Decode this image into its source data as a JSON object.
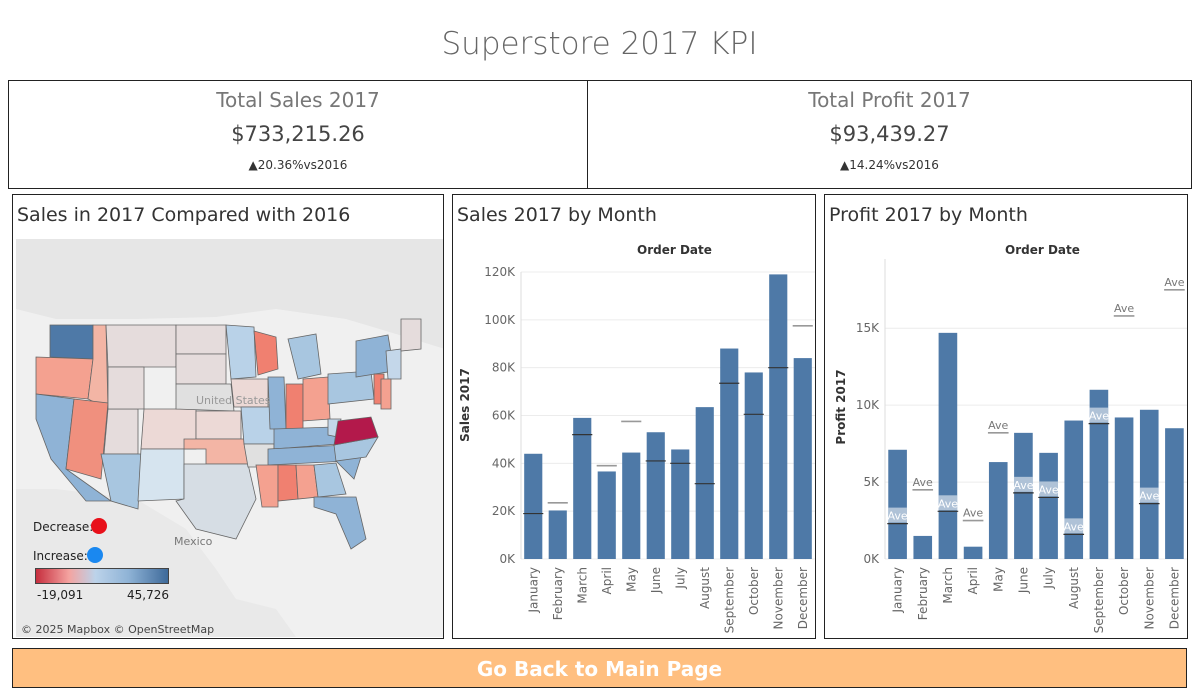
{
  "page": {
    "title": "Superstore 2017 KPI"
  },
  "kpis": {
    "sales": {
      "title": "Total Sales 2017",
      "value": "$733,215.26",
      "delta": "▲20.36%vs2016"
    },
    "profit": {
      "title": "Total Profit 2017",
      "value": "$93,439.27",
      "delta": "▲14.24%vs2016"
    }
  },
  "map": {
    "title": "Sales in 2017 Compared with 2016",
    "label_mexico": "Mexico",
    "label_us": "United States",
    "legend": {
      "decrease_label": "Decrease:",
      "increase_label": "Increase:",
      "decrease_color": "#e8101a",
      "increase_color": "#1a88f0",
      "min_label": "-19,091",
      "max_label": "45,726"
    },
    "attribution": "© 2025 Mapbox © OpenStreetMap"
  },
  "nav": {
    "back_label": "Go Back to Main Page"
  },
  "chart_data": [
    {
      "type": "bar",
      "title": "Sales 2017 by Month",
      "xlabel": "Order Date",
      "ylabel": "Sales 2017",
      "categories": [
        "January",
        "February",
        "March",
        "April",
        "May",
        "June",
        "July",
        "August",
        "September",
        "October",
        "November",
        "December"
      ],
      "values": [
        44000,
        20300,
        59000,
        36600,
        44500,
        53000,
        45800,
        63500,
        88000,
        78000,
        119000,
        84000
      ],
      "reference": [
        19000,
        23500,
        52000,
        39000,
        57500,
        41000,
        40000,
        31500,
        73500,
        60500,
        80000,
        97500
      ],
      "ylim": [
        0,
        120000
      ],
      "yticks": [
        "0K",
        "20K",
        "40K",
        "60K",
        "80K",
        "100K",
        "120K"
      ],
      "ytick_values": [
        0,
        20000,
        40000,
        60000,
        80000,
        100000,
        120000
      ],
      "bar_color": "#4e79a7"
    },
    {
      "type": "bar",
      "title": "Profit 2017 by Month",
      "xlabel": "Order Date",
      "ylabel": "Profit 2017",
      "categories": [
        "January",
        "February",
        "March",
        "April",
        "May",
        "June",
        "July",
        "August",
        "September",
        "October",
        "November",
        "December"
      ],
      "values": [
        7100,
        1500,
        14700,
        800,
        6300,
        8200,
        6900,
        9000,
        11000,
        9200,
        9700,
        8500
      ],
      "reference": [
        2300,
        4500,
        3100,
        2500,
        8200,
        4300,
        4000,
        1600,
        8800,
        15800,
        3600,
        17500
      ],
      "reference_label": "Ave",
      "ylim": [
        0,
        19500
      ],
      "yticks": [
        "0K",
        "5K",
        "10K",
        "15K"
      ],
      "ytick_values": [
        0,
        5000,
        10000,
        15000
      ],
      "bar_color": "#4e79a7"
    }
  ]
}
